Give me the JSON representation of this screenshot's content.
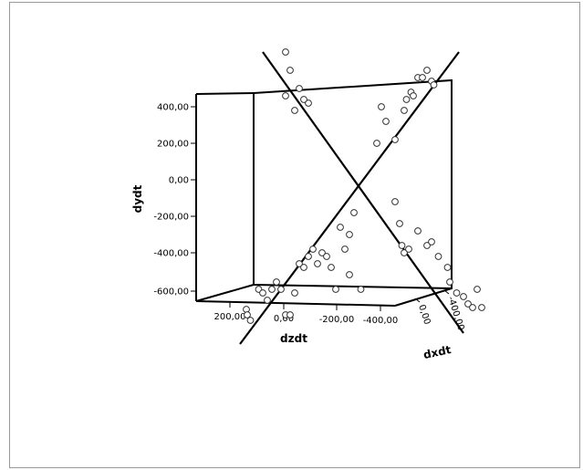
{
  "chart_data": {
    "type": "scatter",
    "title": "",
    "projection": "3d",
    "xlabel": "dzdt",
    "ylabel": "dydt",
    "zlabel": "dxdt",
    "x_ticks": [
      "200,00",
      "0,00",
      "-200,00",
      "-400,00"
    ],
    "y_ticks": [
      "400,00",
      "200,00",
      "0,00",
      "-200,00",
      "-400,00",
      "-600,00"
    ],
    "z_ticks": [
      "0,00",
      "-400,00"
    ],
    "fit_lines": [
      {
        "x": [
          90,
          -390
        ],
        "y": [
          -450,
          350
        ]
      },
      {
        "x": [
          40,
          -400
        ],
        "y": [
          350,
          -420
        ]
      }
    ],
    "points": [
      {
        "x": 76,
        "y": -355
      },
      {
        "x": 74,
        "y": -370
      },
      {
        "x": 67,
        "y": -385
      },
      {
        "x": 49,
        "y": -300
      },
      {
        "x": 40,
        "y": -310
      },
      {
        "x": 30,
        "y": -330
      },
      {
        "x": 20,
        "y": -300
      },
      {
        "x": 10,
        "y": -280
      },
      {
        "x": 0,
        "y": -300
      },
      {
        "x": -10,
        "y": -370
      },
      {
        "x": -20,
        "y": -370
      },
      {
        "x": -30,
        "y": -310
      },
      {
        "x": -40,
        "y": -230
      },
      {
        "x": -50,
        "y": -240
      },
      {
        "x": -60,
        "y": -210
      },
      {
        "x": -70,
        "y": -190
      },
      {
        "x": -80,
        "y": -230
      },
      {
        "x": -90,
        "y": -200
      },
      {
        "x": -100,
        "y": -210
      },
      {
        "x": -110,
        "y": -240
      },
      {
        "x": -120,
        "y": -300
      },
      {
        "x": -130,
        "y": -130
      },
      {
        "x": -140,
        "y": -190
      },
      {
        "x": -150,
        "y": -150
      },
      {
        "x": -160,
        "y": -90
      },
      {
        "x": -175,
        "y": -300
      },
      {
        "x": -150,
        "y": -260
      },
      {
        "x": -220,
        "y": 200
      },
      {
        "x": -230,
        "y": 160
      },
      {
        "x": -210,
        "y": 100
      },
      {
        "x": -250,
        "y": 110
      },
      {
        "x": -270,
        "y": 190
      },
      {
        "x": -275,
        "y": 220
      },
      {
        "x": -285,
        "y": 240
      },
      {
        "x": -290,
        "y": 230
      },
      {
        "x": -300,
        "y": 280
      },
      {
        "x": -310,
        "y": 280
      },
      {
        "x": -320,
        "y": 300
      },
      {
        "x": -330,
        "y": 270
      },
      {
        "x": -335,
        "y": 260
      },
      {
        "x": -10,
        "y": 350
      },
      {
        "x": -20,
        "y": 300
      },
      {
        "x": -10,
        "y": 230
      },
      {
        "x": -40,
        "y": 250
      },
      {
        "x": -30,
        "y": 190
      },
      {
        "x": -60,
        "y": 210
      },
      {
        "x": -50,
        "y": 220
      },
      {
        "x": -250,
        "y": -60
      },
      {
        "x": -260,
        "y": -120
      },
      {
        "x": -265,
        "y": -180
      },
      {
        "x": -270,
        "y": -200
      },
      {
        "x": -280,
        "y": -190
      },
      {
        "x": -300,
        "y": -140
      },
      {
        "x": -320,
        "y": -180
      },
      {
        "x": -330,
        "y": -170
      },
      {
        "x": -345,
        "y": -210
      },
      {
        "x": -365,
        "y": -240
      },
      {
        "x": -370,
        "y": -280
      },
      {
        "x": -385,
        "y": -310
      },
      {
        "x": -400,
        "y": -320
      },
      {
        "x": -410,
        "y": -340
      },
      {
        "x": -420,
        "y": -350
      },
      {
        "x": -430,
        "y": -300
      },
      {
        "x": -440,
        "y": -350
      }
    ]
  }
}
